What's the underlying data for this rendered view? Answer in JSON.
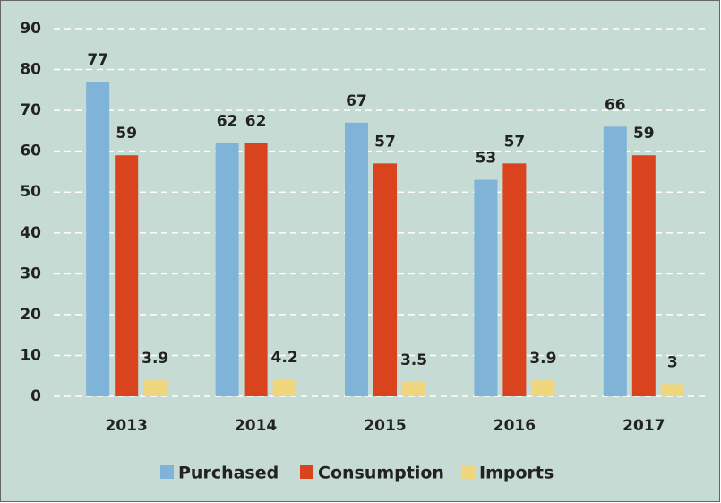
{
  "chart_data": {
    "type": "bar",
    "categories": [
      "2013",
      "2014",
      "2015",
      "2016",
      "2017"
    ],
    "series": [
      {
        "name": "Purchased",
        "color": "#7fb3d8",
        "values": [
          77,
          62,
          67,
          53,
          66
        ]
      },
      {
        "name": "Consumption",
        "color": "#d9431e",
        "values": [
          59,
          62,
          57,
          57,
          59
        ]
      },
      {
        "name": "Imports",
        "color": "#efd67c",
        "values": [
          3.9,
          4.2,
          3.5,
          3.9,
          3
        ]
      }
    ],
    "ylim": [
      0,
      90
    ],
    "yticks": [
      0,
      10,
      20,
      30,
      40,
      50,
      60,
      70,
      80,
      90
    ],
    "grid": true,
    "legend": "bottom"
  }
}
